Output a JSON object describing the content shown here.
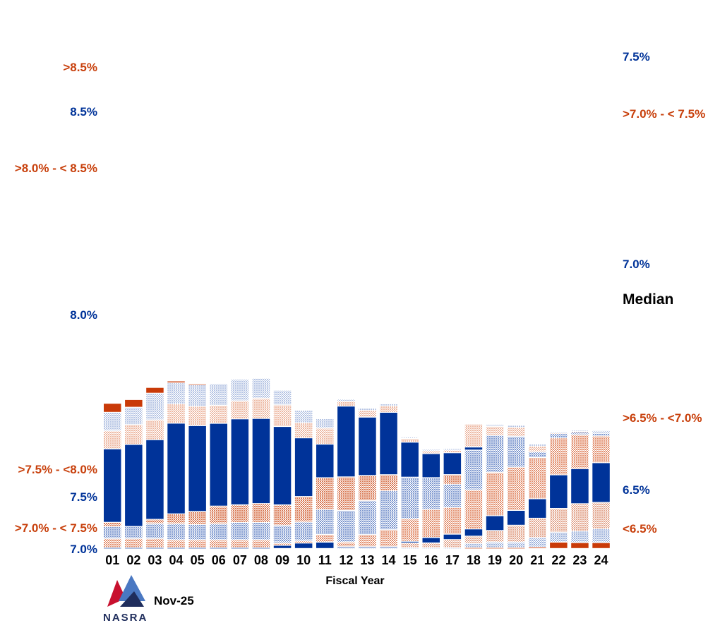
{
  "chart_data": {
    "type": "bar",
    "subtype": "stacked-100-percent",
    "xlabel": "Fiscal Year",
    "categories": [
      "01",
      "02",
      "03",
      "04",
      "05",
      "06",
      "07",
      "08",
      "09",
      "10",
      "11",
      "12",
      "13",
      "14",
      "15",
      "16",
      "17",
      "18",
      "19",
      "20",
      "21",
      "22",
      "23",
      "24"
    ],
    "median_label": "Median",
    "legend_style": "bands are labeled at the sides of the chart",
    "bands": [
      {
        "key": "lt65",
        "name": "<6.5%",
        "color": "#c93a08",
        "pattern": "solid"
      },
      {
        "key": "r65",
        "name": "6.5%",
        "color": "#9fb3dc",
        "pattern": "dots"
      },
      {
        "key": "b65_70",
        "name": ">6.5% - <7.0%",
        "color": "#e3a68e",
        "pattern": "dots"
      },
      {
        "key": "r70",
        "name": "7.0%",
        "color": "#003399",
        "pattern": "solid"
      },
      {
        "key": "b70_75",
        "name": ">7.0% - < 7.5%",
        "color": "#e3906f",
        "pattern": "dots"
      },
      {
        "key": "r75",
        "name": "7.5%",
        "color": "#7e98cf",
        "pattern": "dots"
      },
      {
        "key": "b75_80",
        "name": ">7.5% - <8.0%",
        "color": "#d97a55",
        "pattern": "dots"
      },
      {
        "key": "r80",
        "name": "8.0%",
        "color": "#003399",
        "pattern": "solid"
      },
      {
        "key": "b80_85",
        "name": ">8.0% - < 8.5%",
        "color": "#edb8a2",
        "pattern": "dots"
      },
      {
        "key": "r85",
        "name": "8.5%",
        "color": "#b4c3e3",
        "pattern": "dots"
      },
      {
        "key": "gt85",
        "name": ">8.5%",
        "color": "#c93a08",
        "pattern": "solid"
      }
    ],
    "series": [
      {
        "name": "<6.5%",
        "values": [
          0,
          0,
          0,
          0,
          0,
          0,
          0,
          0,
          0,
          0,
          0,
          0,
          0,
          0,
          0,
          0,
          0,
          1.3,
          1.3,
          1.3,
          2.1,
          9.0,
          8.3,
          8.3
        ]
      },
      {
        "name": "6.5%",
        "values": [
          0,
          0,
          0,
          0,
          0,
          0,
          0,
          0,
          0,
          0,
          0,
          1.3,
          1.3,
          1.3,
          1.3,
          1.3,
          1.3,
          6.0,
          7.7,
          7.7,
          13.3,
          14.2,
          16.4,
          19.6
        ]
      },
      {
        "name": ">6.5% - <7.0%",
        "values": [
          0,
          0,
          0,
          0,
          0,
          0,
          0,
          0,
          0,
          0,
          0,
          0,
          0,
          0,
          6.6,
          6.6,
          11.3,
          10.2,
          16.5,
          24.0,
          27.5,
          33.6,
          38.8,
          37.4
        ]
      },
      {
        "name": "7.0%",
        "values": [
          1.3,
          1.3,
          1.3,
          1.3,
          1.3,
          1.3,
          1.3,
          1.3,
          4.5,
          7.7,
          9.0,
          1.3,
          1.3,
          1.3,
          2.3,
          7.7,
          7.7,
          10.2,
          21.0,
          21.0,
          27.6,
          47.6,
          49.6,
          56.3
        ]
      },
      {
        "name": ">7.0% - < 7.5%",
        "values": [
          12.8,
          12.8,
          12.8,
          10.8,
          10.8,
          10.8,
          10.8,
          10.8,
          3.2,
          3.2,
          10.8,
          6.4,
          17.1,
          24.0,
          31.6,
          39.9,
          37.9,
          55.3,
          61.3,
          61.3,
          58.5,
          52.3,
          48.2,
          37.8
        ]
      },
      {
        "name": "7.5%",
        "values": [
          17.1,
          17.1,
          21.2,
          23.0,
          22.0,
          23.0,
          24.9,
          24.9,
          24.9,
          26.7,
          35.6,
          44.9,
          48.2,
          55.3,
          59.3,
          44.9,
          32.9,
          56.5,
          52.6,
          43.6,
          8.1,
          6.1,
          3.9,
          3.9
        ]
      },
      {
        "name": ">7.5% - <8.0%",
        "values": [
          5.9,
          0,
          6.0,
          14.0,
          18.4,
          25.0,
          24.9,
          26.7,
          29.2,
          36.1,
          44.9,
          47.6,
          35.6,
          22.7,
          0,
          0,
          13.6,
          0,
          0,
          0,
          0,
          0,
          0,
          0
        ]
      },
      {
        "name": "8.0%",
        "values": [
          104.1,
          116.3,
          112.9,
          128.5,
          121.6,
          117.3,
          121.8,
          120.6,
          111.1,
          83.1,
          47.6,
          100.3,
          82.7,
          88.4,
          49.6,
          34.1,
          31.0,
          4.3,
          0,
          0,
          0,
          0,
          0,
          0
        ]
      },
      {
        "name": ">8.0% - < 8.5%",
        "values": [
          25.6,
          28.1,
          28.1,
          27.3,
          27.4,
          25.6,
          25.6,
          28.5,
          30.6,
          21.4,
          22.6,
          6.9,
          9.6,
          9.1,
          5.1,
          3.7,
          3.7,
          32.6,
          12.7,
          12.7,
          7.9,
          0.8,
          0.8,
          0
        ]
      },
      {
        "name": "8.5%",
        "values": [
          26.2,
          24.6,
          37.8,
          29.9,
          30.5,
          30.6,
          30.6,
          28.5,
          20.8,
          17.7,
          13.5,
          3.0,
          3.0,
          3.0,
          2.3,
          2.3,
          2.3,
          0,
          3.0,
          3.0,
          3.0,
          1.6,
          1.6,
          3.9
        ]
      },
      {
        "name": ">8.5%",
        "values": [
          12.8,
          10.9,
          8.2,
          2.6,
          1.3,
          0,
          0,
          0,
          0,
          0,
          0,
          0,
          0,
          0,
          0,
          0,
          0,
          0,
          0,
          0,
          0,
          0,
          0,
          0
        ]
      }
    ],
    "side_labels_left": [
      {
        "text": ">8.5%",
        "color": "#c8400c",
        "band": ">8.5%"
      },
      {
        "text": "8.5%",
        "color": "#003399",
        "band": "8.5%"
      },
      {
        "text": ">8.0% - < 8.5%",
        "color": "#c8400c",
        "band": ">8.0% - < 8.5%"
      },
      {
        "text": "8.0%",
        "color": "#003399",
        "band": "8.0%"
      },
      {
        "text": ">7.5% - <8.0%",
        "color": "#c8400c",
        "band": ">7.5% - <8.0%"
      },
      {
        "text": "7.5%",
        "color": "#003399",
        "band": "7.5%"
      },
      {
        "text": ">7.0% - < 7.5%",
        "color": "#c8400c",
        "band": ">7.0% - < 7.5%"
      },
      {
        "text": "7.0%",
        "color": "#003399",
        "band": "7.0%"
      }
    ],
    "side_labels_right": [
      {
        "text": "7.5%",
        "color": "#003399",
        "band": "7.5%"
      },
      {
        "text": ">7.0% - < 7.5%",
        "color": "#c8400c",
        "band": ">7.0% - < 7.5%"
      },
      {
        "text": "7.0%",
        "color": "#003399",
        "band": "7.0%"
      },
      {
        "text": ">6.5% - <7.0%",
        "color": "#c8400c",
        "band": ">6.5% - <7.0%"
      },
      {
        "text": "6.5%",
        "color": "#003399",
        "band": "6.5%"
      },
      {
        "text": "<6.5%",
        "color": "#c8400c",
        "band": "<6.5%"
      }
    ]
  },
  "footer": {
    "date": "Nov-25",
    "logo_text": "NASRA"
  },
  "colors": {
    "median_line": "#ffffff",
    "logo_red": "#c8102e",
    "logo_blue": "#1f4e99",
    "logo_navy": "#1f2d5c"
  }
}
